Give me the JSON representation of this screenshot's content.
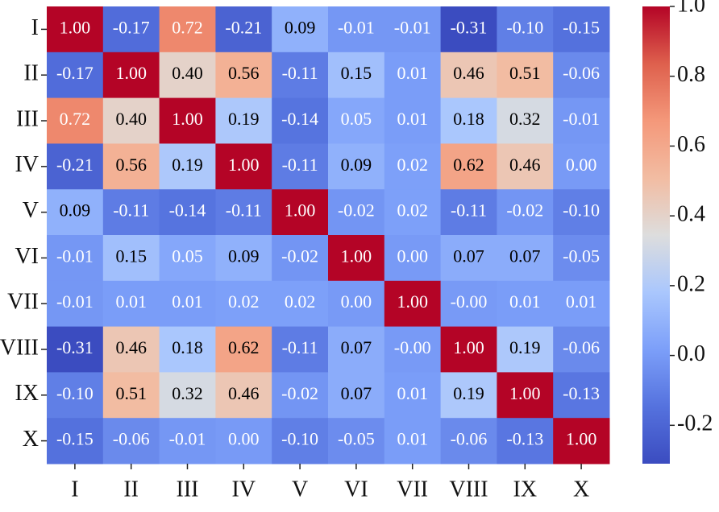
{
  "chart_data": {
    "type": "heatmap",
    "colormap": "coolwarm",
    "categories": [
      "I",
      "II",
      "III",
      "IV",
      "V",
      "VI",
      "VII",
      "VIII",
      "IX",
      "X"
    ],
    "values": [
      [
        1,
        -0.17,
        0.72,
        -0.21,
        0.09,
        -0.01,
        -0.01,
        -0.31,
        -0.1,
        -0.15
      ],
      [
        -0.17,
        1,
        0.4,
        0.56,
        -0.11,
        0.15,
        0.01,
        0.46,
        0.51,
        -0.06
      ],
      [
        0.72,
        0.4,
        1,
        0.19,
        -0.14,
        0.05,
        0.01,
        0.18,
        0.32,
        -0.01
      ],
      [
        -0.21,
        0.56,
        0.19,
        1,
        -0.11,
        0.09,
        0.02,
        0.62,
        0.46,
        0
      ],
      [
        0.09,
        -0.11,
        -0.14,
        -0.11,
        1,
        -0.02,
        0.02,
        -0.11,
        -0.02,
        -0.1
      ],
      [
        -0.01,
        0.15,
        0.05,
        0.09,
        -0.02,
        1,
        0,
        0.07,
        0.07,
        -0.05
      ],
      [
        -0.01,
        0.01,
        0.01,
        0.02,
        0.02,
        0,
        1,
        0,
        0.01,
        0.01
      ],
      [
        -0.31,
        0.46,
        0.18,
        0.62,
        -0.11,
        0.07,
        0,
        1,
        0.19,
        -0.06
      ],
      [
        -0.1,
        0.51,
        0.32,
        0.46,
        -0.02,
        0.07,
        0.01,
        0.19,
        1,
        -0.13
      ],
      [
        -0.15,
        -0.06,
        -0.01,
        0,
        -0.1,
        -0.05,
        0.01,
        -0.06,
        -0.13,
        1
      ]
    ],
    "value_labels": [
      [
        "1.00",
        "-0.17",
        "0.72",
        "-0.21",
        "0.09",
        "-0.01",
        "-0.01",
        "-0.31",
        "-0.10",
        "-0.15"
      ],
      [
        "-0.17",
        "1.00",
        "0.40",
        "0.56",
        "-0.11",
        "0.15",
        "0.01",
        "0.46",
        "0.51",
        "-0.06"
      ],
      [
        "0.72",
        "0.40",
        "1.00",
        "0.19",
        "-0.14",
        "0.05",
        "0.01",
        "0.18",
        "0.32",
        "-0.01"
      ],
      [
        "-0.21",
        "0.56",
        "0.19",
        "1.00",
        "-0.11",
        "0.09",
        "0.02",
        "0.62",
        "0.46",
        "0.00"
      ],
      [
        "0.09",
        "-0.11",
        "-0.14",
        "-0.11",
        "1.00",
        "-0.02",
        "0.02",
        "-0.11",
        "-0.02",
        "-0.10"
      ],
      [
        "-0.01",
        "0.15",
        "0.05",
        "0.09",
        "-0.02",
        "1.00",
        "0.00",
        "0.07",
        "0.07",
        "-0.05"
      ],
      [
        "-0.01",
        "0.01",
        "0.01",
        "0.02",
        "0.02",
        "0.00",
        "1.00",
        "-0.00",
        "0.01",
        "0.01"
      ],
      [
        "-0.31",
        "0.46",
        "0.18",
        "0.62",
        "-0.11",
        "0.07",
        "-0.00",
        "1.00",
        "0.19",
        "-0.06"
      ],
      [
        "-0.10",
        "0.51",
        "0.32",
        "0.46",
        "-0.02",
        "0.07",
        "0.01",
        "0.19",
        "1.00",
        "-0.13"
      ],
      [
        "-0.15",
        "-0.06",
        "-0.01",
        "0.00",
        "-0.10",
        "-0.05",
        "0.01",
        "-0.06",
        "-0.13",
        "1.00"
      ]
    ],
    "clim": [
      -0.31,
      1.0
    ],
    "cticks": [
      {
        "value": 1.0,
        "label": "1.0"
      },
      0.8,
      0.6,
      0.4,
      0.2,
      {
        "value": 0.0,
        "label": "0.0"
      },
      -0.2
    ]
  }
}
